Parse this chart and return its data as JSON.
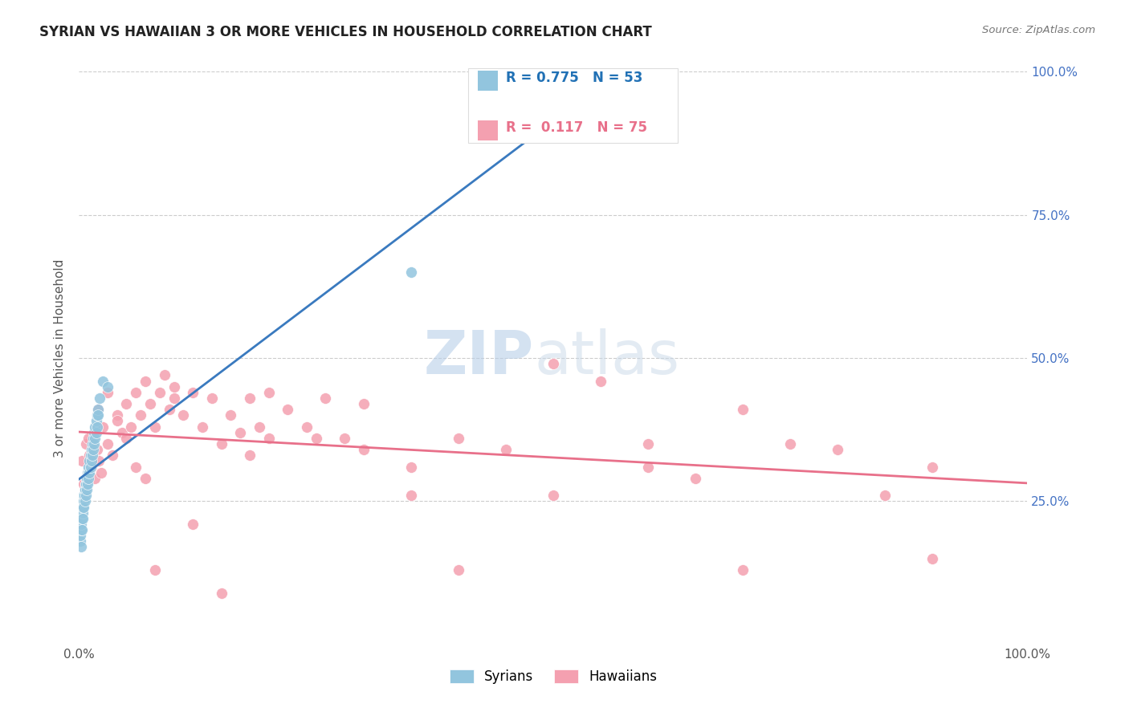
{
  "title": "SYRIAN VS HAWAIIAN 3 OR MORE VEHICLES IN HOUSEHOLD CORRELATION CHART",
  "source": "Source: ZipAtlas.com",
  "ylabel": "3 or more Vehicles in Household",
  "legend_r_syrian": "R = 0.775",
  "legend_n_syrian": "N = 53",
  "legend_r_hawaiian": "R =  0.117",
  "legend_n_hawaiian": "N = 75",
  "syrian_color": "#92c5de",
  "hawaiian_color": "#f4a0b0",
  "syrian_line_color": "#3a7abf",
  "hawaiian_line_color": "#e8708a",
  "watermark_zip": "ZIP",
  "watermark_atlas": "atlas",
  "syrians_x": [
    0.1,
    0.15,
    0.2,
    0.25,
    0.3,
    0.35,
    0.4,
    0.45,
    0.5,
    0.55,
    0.6,
    0.65,
    0.7,
    0.75,
    0.8,
    0.85,
    0.9,
    0.95,
    1.0,
    1.1,
    1.2,
    1.3,
    1.4,
    1.5,
    1.6,
    1.7,
    1.8,
    1.9,
    2.0,
    2.2,
    2.5,
    0.2,
    0.3,
    0.4,
    0.5,
    0.6,
    0.7,
    0.8,
    0.9,
    1.0,
    1.1,
    1.2,
    1.3,
    1.4,
    1.5,
    1.6,
    1.7,
    1.8,
    1.9,
    2.0,
    3.0,
    35.0,
    48.0
  ],
  "syrians_y": [
    18,
    19,
    20,
    21,
    22,
    23,
    24,
    25,
    26,
    26,
    27,
    27,
    28,
    28,
    29,
    29,
    30,
    30,
    31,
    32,
    33,
    34,
    35,
    36,
    37,
    38,
    39,
    40,
    41,
    43,
    46,
    17,
    20,
    22,
    24,
    25,
    26,
    27,
    28,
    29,
    30,
    31,
    32,
    33,
    34,
    35,
    36,
    37,
    38,
    40,
    45,
    65,
    90
  ],
  "hawaiians_x": [
    0.3,
    0.5,
    0.7,
    0.9,
    1.1,
    1.3,
    1.5,
    1.7,
    1.9,
    2.1,
    2.3,
    2.5,
    3.0,
    3.5,
    4.0,
    4.5,
    5.0,
    5.5,
    6.0,
    6.5,
    7.0,
    7.5,
    8.0,
    8.5,
    9.0,
    9.5,
    10.0,
    11.0,
    12.0,
    13.0,
    14.0,
    15.0,
    16.0,
    17.0,
    18.0,
    19.0,
    20.0,
    22.0,
    24.0,
    26.0,
    28.0,
    30.0,
    35.0,
    40.0,
    45.0,
    50.0,
    55.0,
    60.0,
    65.0,
    70.0,
    75.0,
    80.0,
    85.0,
    90.0,
    1.0,
    2.0,
    3.0,
    4.0,
    5.0,
    6.0,
    7.0,
    8.0,
    10.0,
    12.0,
    15.0,
    18.0,
    20.0,
    25.0,
    30.0,
    35.0,
    40.0,
    50.0,
    60.0,
    70.0,
    90.0
  ],
  "hawaiians_y": [
    32,
    28,
    35,
    30,
    33,
    31,
    36,
    29,
    34,
    32,
    30,
    38,
    35,
    33,
    40,
    37,
    42,
    38,
    44,
    40,
    46,
    42,
    38,
    44,
    47,
    41,
    45,
    40,
    44,
    38,
    43,
    35,
    40,
    37,
    43,
    38,
    36,
    41,
    38,
    43,
    36,
    42,
    31,
    36,
    34,
    49,
    46,
    31,
    29,
    41,
    35,
    34,
    26,
    15,
    36,
    41,
    44,
    39,
    36,
    31,
    29,
    13,
    43,
    21,
    9,
    33,
    44,
    36,
    34,
    26,
    13,
    26,
    35,
    13,
    31
  ]
}
